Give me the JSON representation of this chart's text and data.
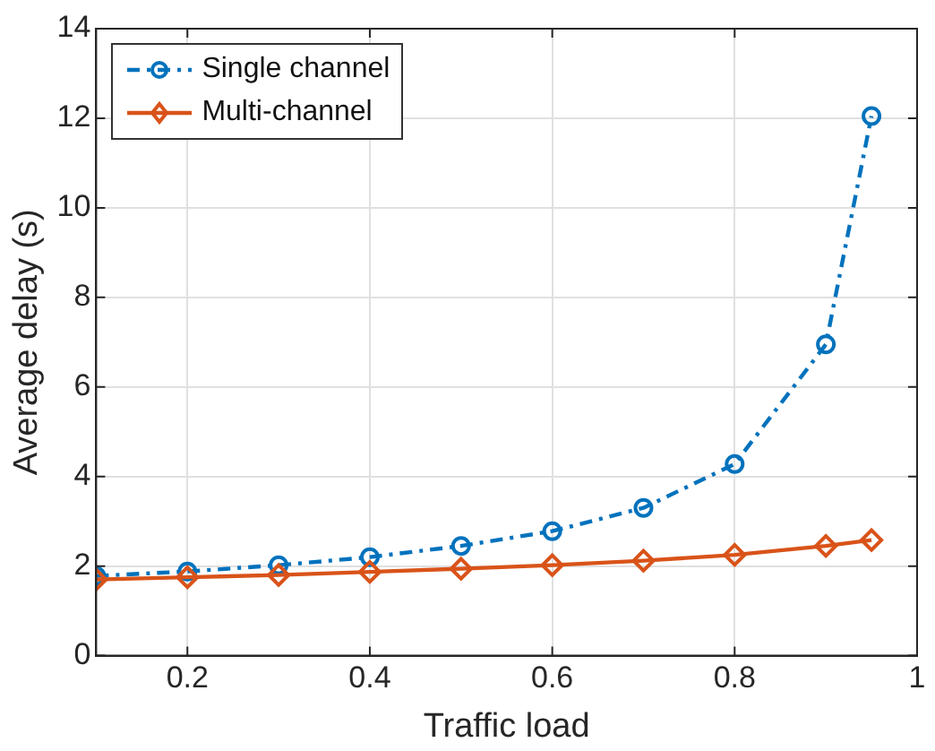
{
  "chart_data": {
    "type": "line",
    "xlabel": "Traffic load",
    "ylabel": "Average delay (s)",
    "x": [
      0.1,
      0.2,
      0.3,
      0.4,
      0.5,
      0.6,
      0.7,
      0.8,
      0.9,
      0.95
    ],
    "xlim": [
      0.1,
      1
    ],
    "xticks": [
      0.2,
      0.4,
      0.6,
      0.8,
      1
    ],
    "ylim": [
      0,
      14
    ],
    "yticks": [
      0,
      2,
      4,
      6,
      8,
      10,
      12,
      14
    ],
    "grid": true,
    "legend": "top left",
    "series": [
      {
        "name": "Single channel",
        "color": "#0072bd",
        "marker": "circle",
        "line_style": "dashed",
        "values": [
          1.78,
          1.88,
          2.02,
          2.2,
          2.45,
          2.78,
          3.3,
          4.28,
          6.95,
          12.05
        ]
      },
      {
        "name": "Multi-channel",
        "color": "#d95319",
        "marker": "diamond",
        "line_style": "solid",
        "values": [
          1.7,
          1.75,
          1.8,
          1.87,
          1.94,
          2.02,
          2.12,
          2.25,
          2.45,
          2.58
        ]
      }
    ]
  }
}
